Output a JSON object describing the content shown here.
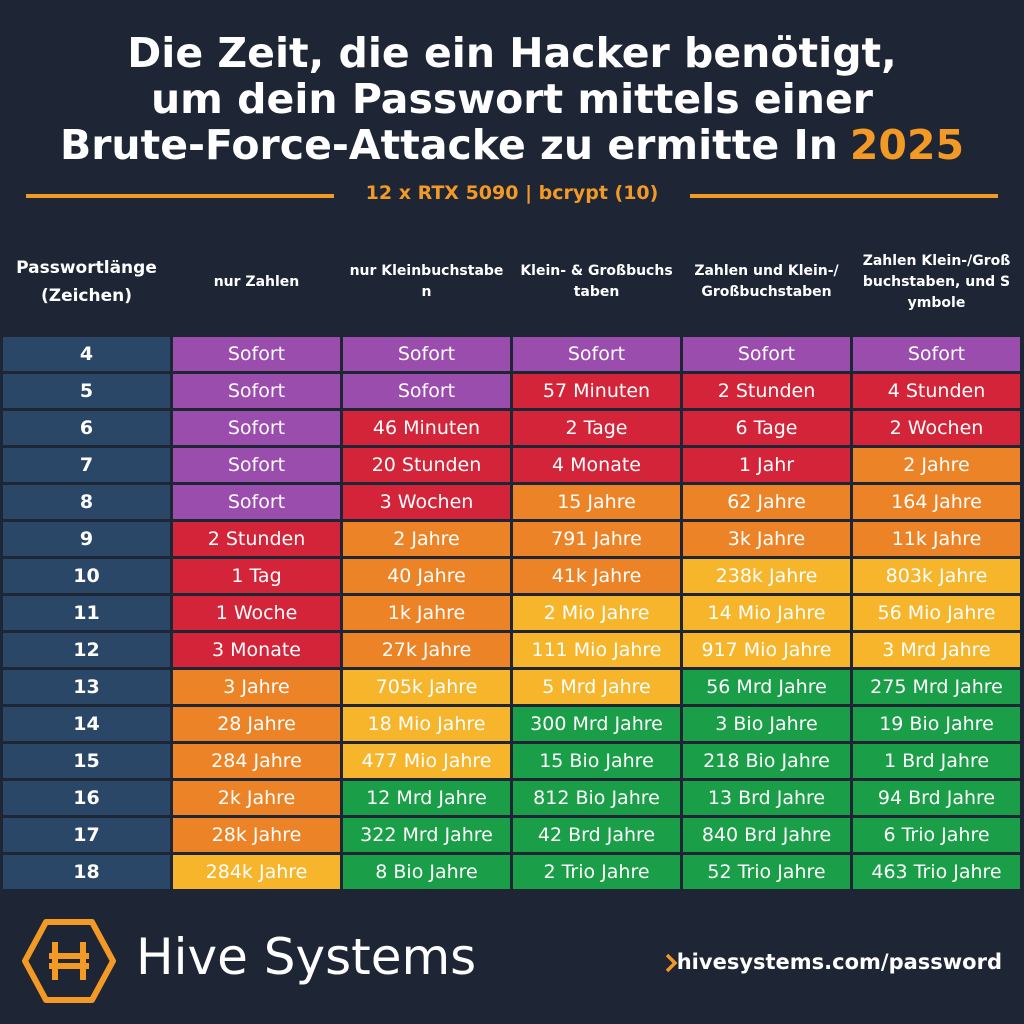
{
  "header": {
    "title_lines": [
      "Die Zeit, die ein Hacker benötigt,",
      "um dein Passwort mittels einer",
      "Brute-Force-Attacke zu ermitte In"
    ],
    "year": "2025",
    "subtitle": "12 x RTX 5090 | bcrypt (10)"
  },
  "table": {
    "columns": [
      "Passwortlänge (Zeichen)",
      "nur Zahlen",
      "nur Kleinbuchstaben",
      "Klein- & Großbuchstaben",
      "Zahlen und Klein-/Großbuchstaben",
      "Zahlen Klein-/Großbuchstaben, und Symbole"
    ],
    "rows": [
      {
        "length": 4,
        "cells": [
          "Sofort",
          "Sofort",
          "Sofort",
          "Sofort",
          "Sofort"
        ],
        "colors": [
          "#9b4dae",
          "#9b4dae",
          "#9b4dae",
          "#9b4dae",
          "#9b4dae"
        ]
      },
      {
        "length": 5,
        "cells": [
          "Sofort",
          "Sofort",
          "57 Minuten",
          "2 Stunden",
          "4 Stunden"
        ],
        "colors": [
          "#9b4dae",
          "#9b4dae",
          "#d3243a",
          "#d3243a",
          "#d3243a"
        ]
      },
      {
        "length": 6,
        "cells": [
          "Sofort",
          "46 Minuten",
          "2 Tage",
          "6 Tage",
          "2 Wochen"
        ],
        "colors": [
          "#9b4dae",
          "#d3243a",
          "#d3243a",
          "#d3243a",
          "#d3243a"
        ]
      },
      {
        "length": 7,
        "cells": [
          "Sofort",
          "20 Stunden",
          "4 Monate",
          "1 Jahr",
          "2 Jahre"
        ],
        "colors": [
          "#9b4dae",
          "#d3243a",
          "#d3243a",
          "#d3243a",
          "#ec8326"
        ]
      },
      {
        "length": 8,
        "cells": [
          "Sofort",
          "3 Wochen",
          "15 Jahre",
          "62 Jahre",
          "164 Jahre"
        ],
        "colors": [
          "#9b4dae",
          "#d3243a",
          "#ec8326",
          "#ec8326",
          "#ec8326"
        ]
      },
      {
        "length": 9,
        "cells": [
          "2 Stunden",
          "2 Jahre",
          "791 Jahre",
          "3k Jahre",
          "11k Jahre"
        ],
        "colors": [
          "#d3243a",
          "#ec8326",
          "#ec8326",
          "#ec8326",
          "#ec8326"
        ]
      },
      {
        "length": 10,
        "cells": [
          "1 Tag",
          "40 Jahre",
          "41k Jahre",
          "238k Jahre",
          "803k Jahre"
        ],
        "colors": [
          "#d3243a",
          "#ec8326",
          "#ec8326",
          "#f7b52c",
          "#f7b52c"
        ]
      },
      {
        "length": 11,
        "cells": [
          "1 Woche",
          "1k Jahre",
          "2 Mio Jahre",
          "14 Mio Jahre",
          "56 Mio Jahre"
        ],
        "colors": [
          "#d3243a",
          "#ec8326",
          "#f7b52c",
          "#f7b52c",
          "#f7b52c"
        ]
      },
      {
        "length": 12,
        "cells": [
          "3 Monate",
          "27k Jahre",
          "111 Mio Jahre",
          "917 Mio Jahre",
          "3 Mrd Jahre"
        ],
        "colors": [
          "#d3243a",
          "#ec8326",
          "#f7b52c",
          "#f7b52c",
          "#f7b52c"
        ]
      },
      {
        "length": 13,
        "cells": [
          "3 Jahre",
          "705k Jahre",
          "5 Mrd Jahre",
          "56 Mrd Jahre",
          "275 Mrd Jahre"
        ],
        "colors": [
          "#ec8326",
          "#f7b52c",
          "#f7b52c",
          "#1b9e48",
          "#1b9e48"
        ]
      },
      {
        "length": 14,
        "cells": [
          "28 Jahre",
          "18 Mio Jahre",
          "300 Mrd Jahre",
          "3 Bio Jahre",
          "19 Bio Jahre"
        ],
        "colors": [
          "#ec8326",
          "#f7b52c",
          "#1b9e48",
          "#1b9e48",
          "#1b9e48"
        ]
      },
      {
        "length": 15,
        "cells": [
          "284 Jahre",
          "477 Mio Jahre",
          "15 Bio Jahre",
          "218 Bio Jahre",
          "1 Brd Jahre"
        ],
        "colors": [
          "#ec8326",
          "#f7b52c",
          "#1b9e48",
          "#1b9e48",
          "#1b9e48"
        ]
      },
      {
        "length": 16,
        "cells": [
          "2k Jahre",
          "12 Mrd Jahre",
          "812 Bio Jahre",
          "13 Brd Jahre",
          "94 Brd Jahre"
        ],
        "colors": [
          "#ec8326",
          "#1b9e48",
          "#1b9e48",
          "#1b9e48",
          "#1b9e48"
        ]
      },
      {
        "length": 17,
        "cells": [
          "28k Jahre",
          "322 Mrd Jahre",
          "42 Brd Jahre",
          "840 Brd Jahre",
          "6 Trio Jahre"
        ],
        "colors": [
          "#ec8326",
          "#1b9e48",
          "#1b9e48",
          "#1b9e48",
          "#1b9e48"
        ]
      },
      {
        "length": 18,
        "cells": [
          "284k Jahre",
          "8 Bio Jahre",
          "2 Trio Jahre",
          "52 Trio Jahre",
          "463 Trio Jahre"
        ],
        "colors": [
          "#f7b52c",
          "#1b9e48",
          "#1b9e48",
          "#1b9e48",
          "#1b9e48"
        ]
      }
    ]
  },
  "footer": {
    "brand": "Hive Systems",
    "url": "hivesystems.com/password"
  }
}
